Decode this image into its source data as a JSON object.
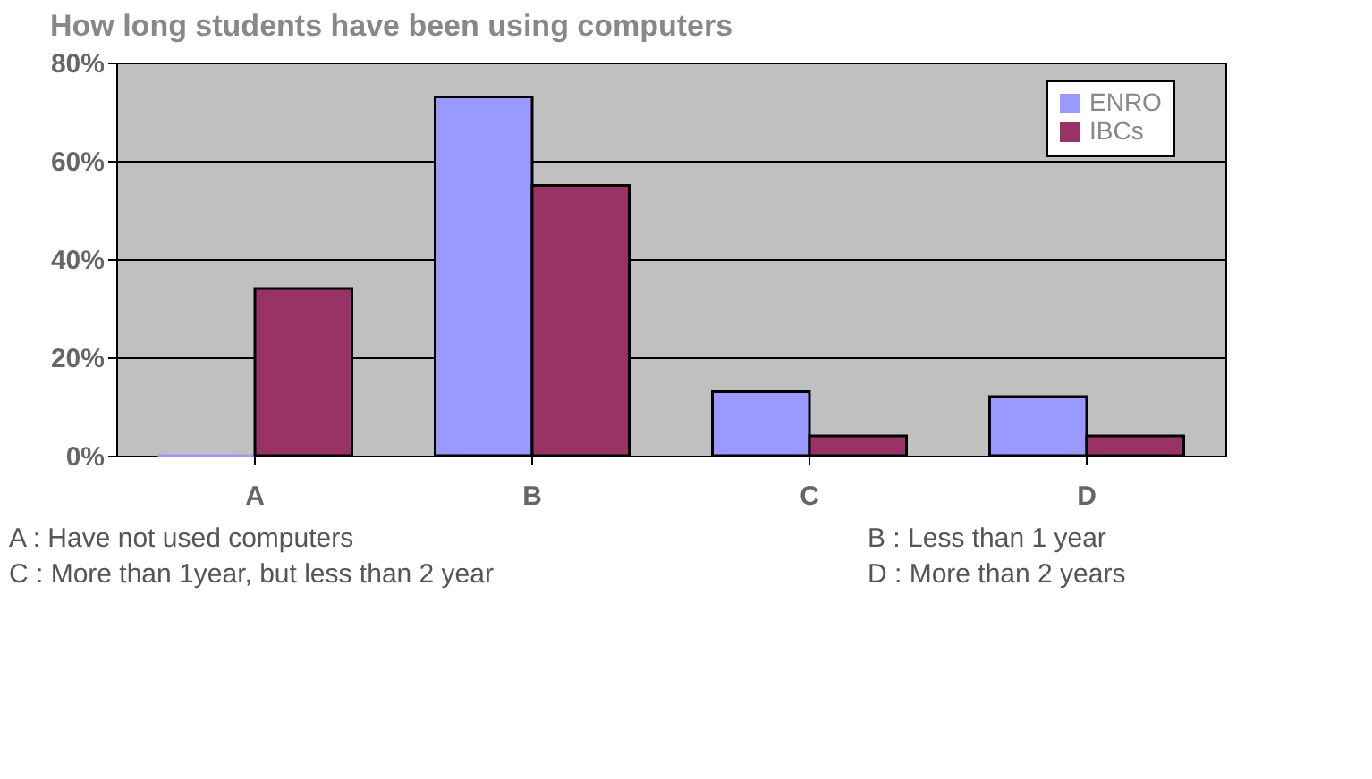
{
  "chart_data": {
    "type": "bar",
    "title": "How long students have been using computers",
    "categories": [
      "A",
      "B",
      "C",
      "D"
    ],
    "series": [
      {
        "name": "ENRO",
        "color": "#9999ff",
        "values": [
          0,
          73,
          13,
          12
        ]
      },
      {
        "name": "IBCs",
        "color": "#993366",
        "values": [
          34,
          55,
          4,
          4
        ]
      }
    ],
    "ylim": [
      0,
      80
    ],
    "yticks": [
      {
        "value": 0,
        "label": "0%"
      },
      {
        "value": 20,
        "label": "20%"
      },
      {
        "value": 40,
        "label": "40%"
      },
      {
        "value": 60,
        "label": "60%"
      },
      {
        "value": 80,
        "label": "80%"
      }
    ],
    "grid": "y",
    "legend": "top right",
    "annotations": [
      "A : Have not used computers",
      "B : Less than 1 year",
      "C : More than 1year, but less than 2 year",
      "D : More than 2 years"
    ]
  }
}
